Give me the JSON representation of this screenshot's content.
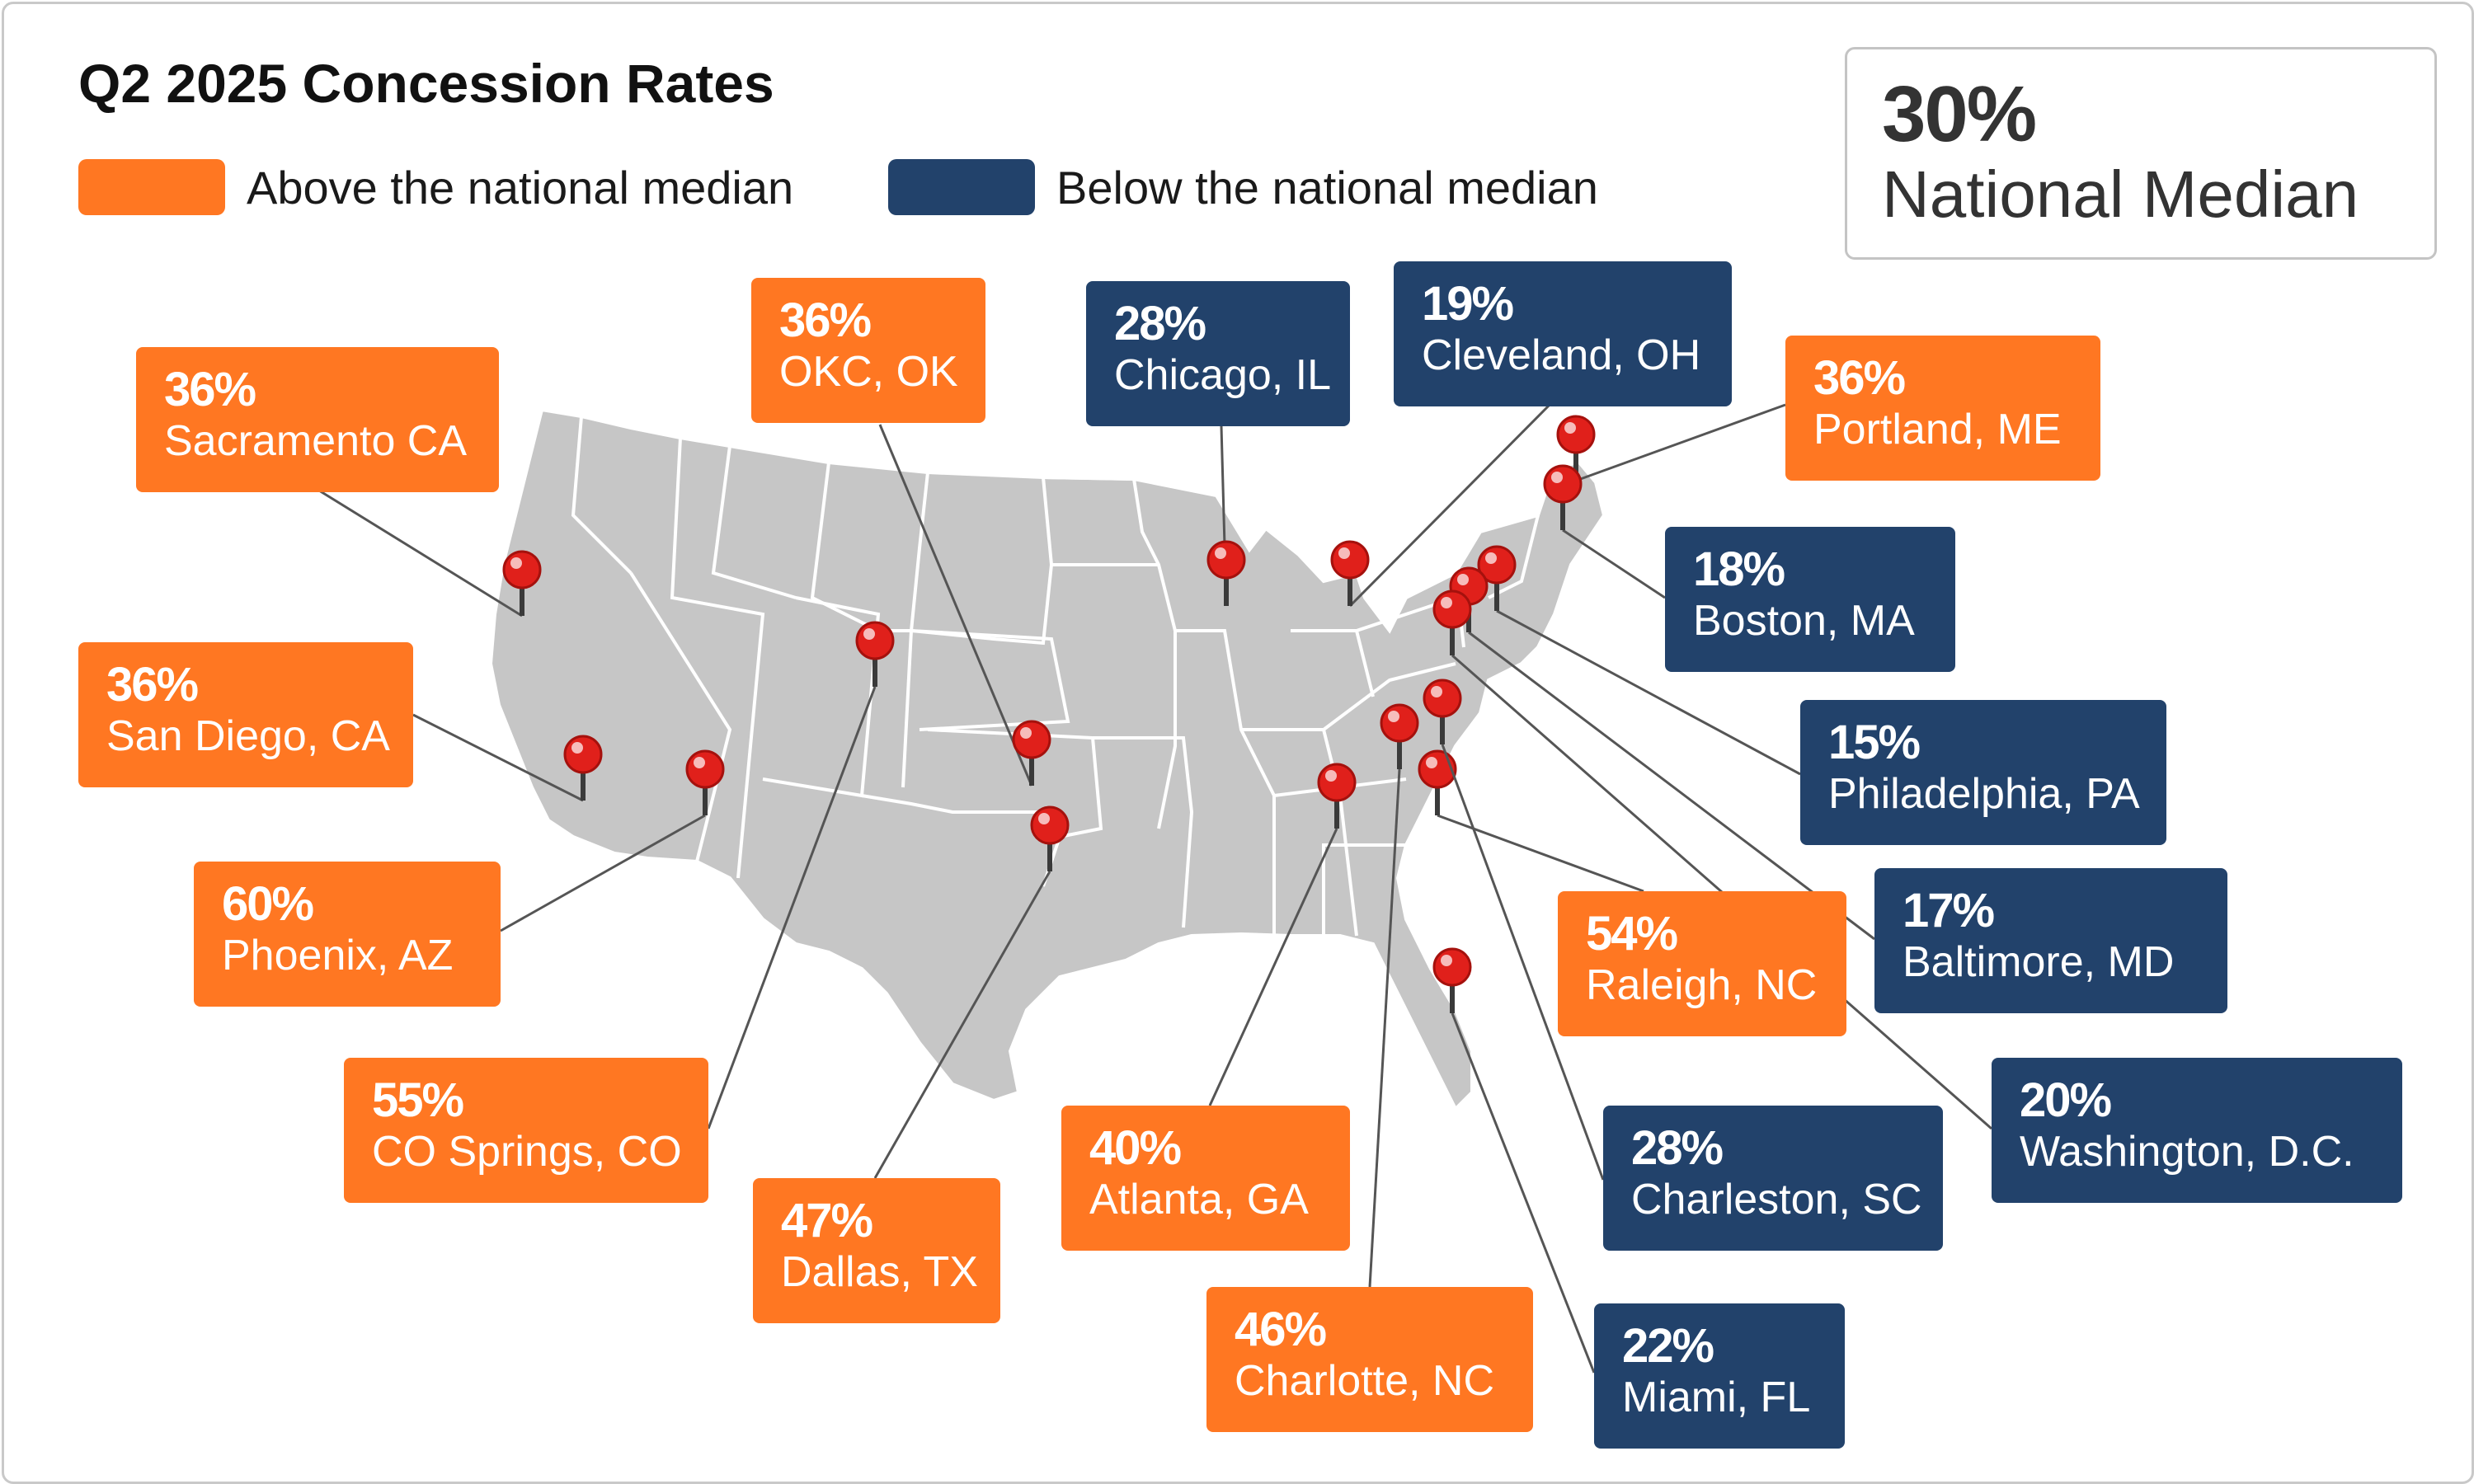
{
  "title": "Q2 2025 Concession Rates",
  "colors": {
    "above": "#FF7722",
    "below": "#22426B",
    "map": "#c6c6c6",
    "pin": "#e0201b"
  },
  "legend": {
    "above_label": "Above the national median",
    "below_label": "Below the national median"
  },
  "national_median": {
    "value": "30%",
    "label": "National Median"
  },
  "markets": [
    {
      "pct": "36%",
      "city": "Sacramento CA",
      "group": "above"
    },
    {
      "pct": "36%",
      "city": "San Diego, CA",
      "group": "above"
    },
    {
      "pct": "60%",
      "city": "Phoenix, AZ",
      "group": "above"
    },
    {
      "pct": "55%",
      "city": "CO Springs, CO",
      "group": "above"
    },
    {
      "pct": "36%",
      "city": "OKC, OK",
      "group": "above"
    },
    {
      "pct": "47%",
      "city": "Dallas, TX",
      "group": "above"
    },
    {
      "pct": "28%",
      "city": "Chicago, IL",
      "group": "below"
    },
    {
      "pct": "19%",
      "city": "Cleveland, OH",
      "group": "below"
    },
    {
      "pct": "40%",
      "city": "Atlanta, GA",
      "group": "above"
    },
    {
      "pct": "46%",
      "city": "Charlotte, NC",
      "group": "above"
    },
    {
      "pct": "36%",
      "city": "Portland, ME",
      "group": "above"
    },
    {
      "pct": "18%",
      "city": "Boston, MA",
      "group": "below"
    },
    {
      "pct": "15%",
      "city": "Philadelphia, PA",
      "group": "below"
    },
    {
      "pct": "17%",
      "city": "Baltimore, MD",
      "group": "below"
    },
    {
      "pct": "54%",
      "city": "Raleigh, NC",
      "group": "above"
    },
    {
      "pct": "20%",
      "city": "Washington, D.C.",
      "group": "below"
    },
    {
      "pct": "28%",
      "city": "Charleston, SC",
      "group": "below"
    },
    {
      "pct": "22%",
      "city": "Miami, FL",
      "group": "below"
    }
  ]
}
